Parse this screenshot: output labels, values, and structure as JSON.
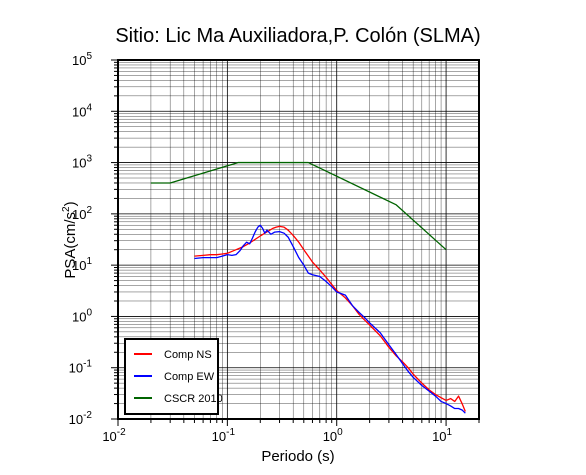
{
  "chart_data": {
    "type": "line",
    "title": "Sitio: Lic Ma Auxiliadora,P. Colón (SLMA)",
    "xlabel": "Periodo (s)",
    "ylabel_main": "PSA(cm/s",
    "ylabel_sup": "2",
    "ylabel_close": ")",
    "x_scale": "log",
    "y_scale": "log",
    "xlim": [
      0.01,
      20
    ],
    "ylim": [
      0.01,
      100000
    ],
    "grid": true,
    "legend_position": "bottom-left",
    "x_ticks": [
      {
        "value": 0.01,
        "base": "10",
        "exp": "-2"
      },
      {
        "value": 0.1,
        "base": "10",
        "exp": "-1"
      },
      {
        "value": 1,
        "base": "10",
        "exp": "0"
      },
      {
        "value": 10,
        "base": "10",
        "exp": "1"
      }
    ],
    "y_ticks": [
      {
        "value": 0.01,
        "base": "10",
        "exp": "-2"
      },
      {
        "value": 0.1,
        "base": "10",
        "exp": "-1"
      },
      {
        "value": 1,
        "base": "10",
        "exp": "0"
      },
      {
        "value": 10,
        "base": "10",
        "exp": "1"
      },
      {
        "value": 100,
        "base": "10",
        "exp": "2"
      },
      {
        "value": 1000,
        "base": "10",
        "exp": "3"
      },
      {
        "value": 10000,
        "base": "10",
        "exp": "4"
      },
      {
        "value": 100000,
        "base": "10",
        "exp": "5"
      }
    ],
    "series": [
      {
        "name": "Comp NS",
        "color": "#ff0000",
        "x": [
          0.05,
          0.06,
          0.07,
          0.08,
          0.09,
          0.1,
          0.12,
          0.14,
          0.16,
          0.18,
          0.2,
          0.22,
          0.24,
          0.26,
          0.28,
          0.3,
          0.33,
          0.36,
          0.4,
          0.45,
          0.5,
          0.55,
          0.6,
          0.7,
          0.8,
          0.9,
          1.0,
          1.2,
          1.4,
          1.6,
          1.8,
          2.0,
          2.5,
          3.0,
          3.5,
          4.0,
          4.5,
          5.0,
          6.0,
          7.0,
          8.0,
          9.0,
          10.0,
          11.0,
          12.0,
          13.0,
          14.0,
          15.0
        ],
        "y": [
          15,
          15.5,
          16,
          16,
          16.5,
          17,
          20,
          23,
          27,
          32,
          37,
          42,
          47,
          52,
          55,
          57,
          55,
          48,
          38,
          28,
          20,
          15,
          11.5,
          8,
          5.8,
          4.2,
          3.2,
          2.3,
          1.6,
          1.1,
          0.85,
          0.68,
          0.42,
          0.25,
          0.17,
          0.13,
          0.1,
          0.075,
          0.05,
          0.037,
          0.03,
          0.026,
          0.023,
          0.025,
          0.022,
          0.028,
          0.02,
          0.014
        ]
      },
      {
        "name": "Comp EW",
        "color": "#0000ff",
        "x": [
          0.05,
          0.06,
          0.07,
          0.08,
          0.09,
          0.1,
          0.11,
          0.12,
          0.13,
          0.14,
          0.15,
          0.16,
          0.17,
          0.18,
          0.19,
          0.2,
          0.21,
          0.22,
          0.23,
          0.24,
          0.25,
          0.27,
          0.3,
          0.33,
          0.36,
          0.4,
          0.45,
          0.5,
          0.55,
          0.6,
          0.7,
          0.8,
          0.9,
          1.0,
          1.2,
          1.4,
          1.6,
          1.8,
          2.0,
          2.5,
          3.0,
          3.5,
          4.0,
          4.5,
          5.0,
          6.0,
          7.0,
          8.0,
          9.0,
          10.0,
          11.0,
          12.0,
          13.0,
          14.0,
          15.0
        ],
        "y": [
          13.5,
          14,
          14,
          14,
          15,
          16,
          15.5,
          16,
          19,
          24,
          28,
          26,
          34,
          45,
          55,
          60,
          52,
          42,
          48,
          44,
          40,
          44,
          45,
          42,
          35,
          23,
          14,
          10,
          7,
          6.5,
          6,
          4.8,
          3.8,
          3.0,
          2.6,
          1.6,
          1.2,
          0.95,
          0.75,
          0.48,
          0.28,
          0.18,
          0.12,
          0.085,
          0.065,
          0.045,
          0.035,
          0.028,
          0.022,
          0.02,
          0.018,
          0.016,
          0.016,
          0.015,
          0.013
        ]
      },
      {
        "name": "CSCR 2010",
        "color": "#006400",
        "x": [
          0.02,
          0.03,
          0.125,
          0.5,
          0.55,
          3.5,
          10.0
        ],
        "y": [
          400,
          400,
          1000,
          1000,
          1000,
          150,
          20
        ]
      }
    ]
  }
}
